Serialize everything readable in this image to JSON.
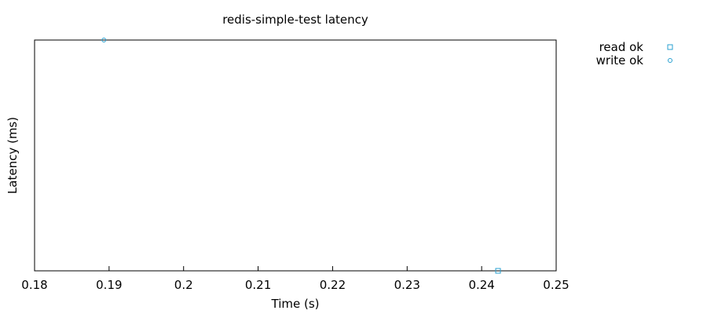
{
  "chart_data": {
    "type": "scatter",
    "title": "redis-simple-test latency",
    "xlabel": "Time (s)",
    "ylabel": "Latency (ms)",
    "xlim": [
      0.18,
      0.25
    ],
    "x_ticks": [
      {
        "value": 0.18,
        "label": "0.18"
      },
      {
        "value": 0.19,
        "label": "0.19"
      },
      {
        "value": 0.2,
        "label": "0.2"
      },
      {
        "value": 0.21,
        "label": "0.21"
      },
      {
        "value": 0.22,
        "label": "0.22"
      },
      {
        "value": 0.23,
        "label": "0.23"
      },
      {
        "value": 0.24,
        "label": "0.24"
      },
      {
        "value": 0.25,
        "label": "0.25"
      }
    ],
    "y_ticks": [],
    "ylim": [
      0,
      1
    ],
    "grid": false,
    "legend_position": "outside top-right",
    "series": [
      {
        "name": "read ok",
        "marker": "square",
        "color": "#29a0d0",
        "points": [
          {
            "x": 0.2422,
            "y": 0
          }
        ]
      },
      {
        "name": "write ok",
        "marker": "circle",
        "color": "#29a0d0",
        "points": [
          {
            "x": 0.1893,
            "y": 1
          }
        ]
      }
    ]
  }
}
